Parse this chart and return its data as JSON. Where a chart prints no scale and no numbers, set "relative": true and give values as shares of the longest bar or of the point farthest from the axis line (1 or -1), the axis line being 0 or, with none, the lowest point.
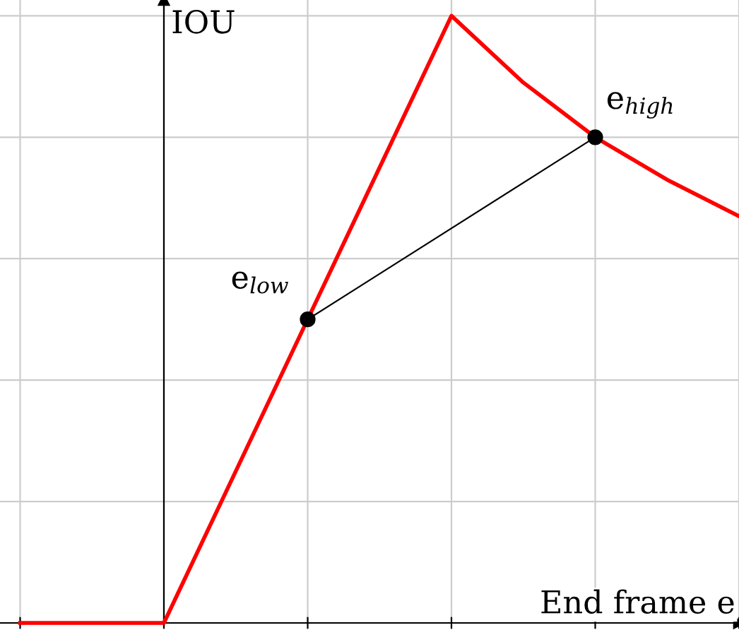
{
  "chart_data": {
    "type": "line",
    "relative": true,
    "xlabel": "End frame e",
    "ylabel": "IOU",
    "grid": true,
    "legend": false,
    "categories": [
      null,
      null,
      null,
      null,
      null,
      null,
      null,
      null,
      null,
      null,
      null
    ],
    "series": [
      {
        "color": "#ff0000",
        "values": [
          0,
          0,
          0,
          0.25,
          0.5,
          0.75,
          1,
          0.89,
          0.8,
          0.73,
          0.67
        ],
        "marker": "none",
        "line_style": "solid"
      },
      {
        "color": "#000000",
        "values": [
          null,
          null,
          null,
          null,
          0.5,
          null,
          null,
          null,
          0.8,
          null,
          null
        ],
        "marker": "circle",
        "line_style": "solid"
      }
    ],
    "annotations": [
      {
        "text": "e$_{low}$"
      },
      {
        "text": "e$_{high}$"
      }
    ]
  }
}
